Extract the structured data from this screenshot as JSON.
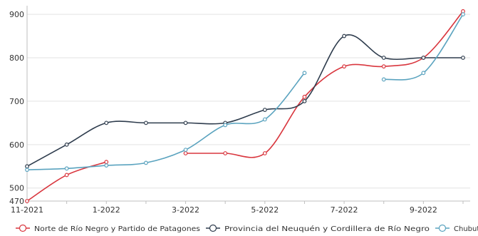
{
  "chart_data": {
    "type": "line",
    "x": [
      "11-2021",
      "12-2021",
      "1-2022",
      "2-2022",
      "3-2022",
      "4-2022",
      "5-2022",
      "6-2022",
      "7-2022",
      "8-2022",
      "9-2022",
      "10-2022"
    ],
    "x_tick_labels": [
      "11-2021",
      "1-2022",
      "3-2022",
      "5-2022",
      "7-2022",
      "9-2022"
    ],
    "y_tick_labels": [
      "470",
      "500",
      "600",
      "700",
      "800",
      "900"
    ],
    "y_ticks": [
      470,
      500,
      600,
      700,
      800,
      900
    ],
    "ylim": [
      470,
      910
    ],
    "grid": true,
    "legend_position": "bottom",
    "series": [
      {
        "name": "Norte de Río Negro y Partido de Patagones",
        "color": "#d9363e",
        "values": [
          470,
          530,
          560,
          null,
          580,
          580,
          580,
          710,
          780,
          780,
          800,
          907
        ]
      },
      {
        "name": "Provincia del Neuquén y Cordillera de Río Negro",
        "color": "#2e3c4d",
        "values": [
          550,
          600,
          650,
          650,
          650,
          650,
          680,
          700,
          850,
          800,
          800,
          800
        ]
      },
      {
        "name": "Chubut",
        "color": "#5aa3bf",
        "values": [
          542,
          545,
          552,
          558,
          588,
          645,
          658,
          765,
          null,
          750,
          765,
          900
        ]
      }
    ]
  }
}
